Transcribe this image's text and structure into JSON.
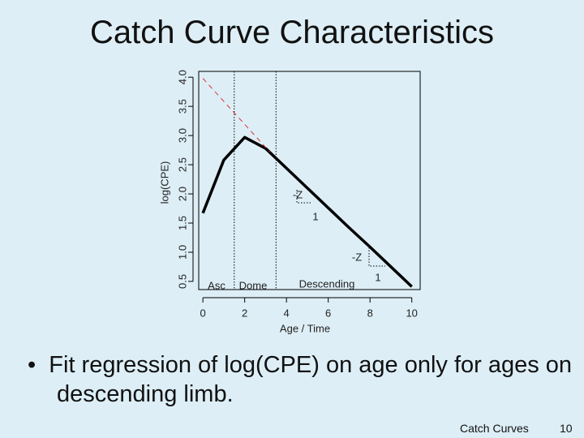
{
  "slide_title": "Catch Curve Characteristics",
  "bullet": "Fit regression of log(CPE) on age only for ages on descending limb.",
  "footer": "Catch Curves",
  "page_number": "10",
  "chart_data": {
    "type": "line",
    "xlabel": "Age / Time",
    "ylabel": "log(CPE)",
    "xlim": [
      -0.2,
      10.4
    ],
    "ylim": [
      0.36,
      4.1
    ],
    "xticks": [
      0,
      2,
      4,
      6,
      8,
      10
    ],
    "yticks": [
      0.5,
      {
        "value": 1.0,
        "label": "1.0"
      },
      1.5,
      {
        "value": 2.0,
        "label": "2.0"
      },
      2.5,
      {
        "value": 3.0,
        "label": "3.0"
      },
      3.5,
      {
        "value": 4.0,
        "label": "4.0"
      }
    ],
    "vlines": [
      1.5,
      3.5
    ],
    "series": [
      {
        "color": "#000000",
        "style": "solid",
        "x": [
          0,
          1,
          2,
          3,
          4,
          5,
          6,
          7,
          8,
          9,
          10
        ],
        "values": [
          1.67,
          2.58,
          2.97,
          2.78,
          2.44,
          2.1,
          1.76,
          1.42,
          1.09,
          0.75,
          0.41
        ]
      },
      {
        "color": "#dd3333",
        "style": "dashed",
        "x": [
          0,
          3.2
        ],
        "values": [
          3.98,
          2.72
        ]
      }
    ],
    "annotations": [
      "-Z",
      "1",
      "-Z",
      "1",
      "Asc",
      "Dome",
      "Descending"
    ]
  }
}
